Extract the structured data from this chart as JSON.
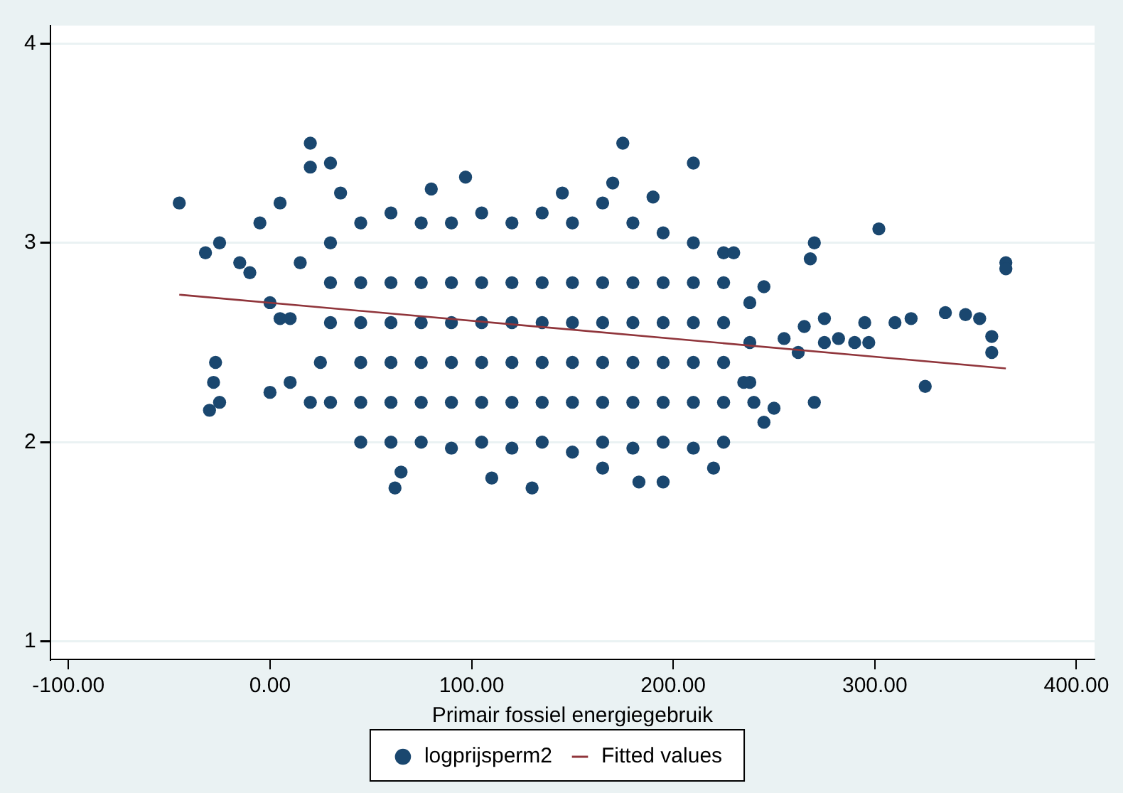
{
  "chart_data": {
    "type": "scatter",
    "xlabel": "Primair fossiel energiegebruik",
    "xlim": [
      -109,
      409
    ],
    "ylim": [
      0.91,
      4.09
    ],
    "xticks": [
      {
        "value": -100,
        "label": "-100.00"
      },
      {
        "value": 0,
        "label": "0.00"
      },
      {
        "value": 100,
        "label": "100.00"
      },
      {
        "value": 200,
        "label": "200.00"
      },
      {
        "value": 300,
        "label": "300.00"
      },
      {
        "value": 400,
        "label": "400.00"
      }
    ],
    "yticks": [
      1,
      2,
      3,
      4
    ],
    "grid": "y",
    "legend": "bottom",
    "marker": "circle",
    "series": [
      {
        "name": "logprijsperm2",
        "color": "#1a476f",
        "x": [
          -45,
          -30,
          -28,
          -27,
          -25,
          -32,
          -25,
          -15,
          -10,
          -5,
          0,
          5,
          10,
          5,
          0,
          10,
          20,
          20,
          30,
          35,
          15,
          25,
          20,
          30,
          30,
          30,
          30,
          45,
          45,
          45,
          45,
          45,
          45,
          60,
          60,
          60,
          60,
          60,
          60,
          75,
          75,
          75,
          75,
          75,
          75,
          90,
          90,
          90,
          90,
          90,
          90,
          105,
          105,
          105,
          105,
          105,
          105,
          120,
          120,
          120,
          120,
          120,
          120,
          135,
          135,
          135,
          135,
          135,
          135,
          150,
          150,
          150,
          150,
          150,
          150,
          165,
          165,
          165,
          165,
          165,
          165,
          180,
          180,
          180,
          180,
          180,
          180,
          195,
          195,
          195,
          195,
          195,
          195,
          210,
          210,
          210,
          210,
          210,
          210,
          225,
          225,
          225,
          225,
          225,
          225,
          238,
          238,
          238,
          62,
          65,
          110,
          130,
          165,
          183,
          195,
          220,
          97,
          175,
          210,
          170,
          190,
          80,
          145,
          245,
          245,
          255,
          262,
          265,
          268,
          270,
          270,
          275,
          275,
          282,
          290,
          295,
          297,
          302,
          310,
          318,
          325,
          335,
          345,
          352,
          358,
          358,
          365,
          365,
          230,
          235,
          240,
          250
        ],
        "values": [
          3.2,
          2.16,
          2.3,
          2.4,
          2.2,
          2.95,
          3.0,
          2.9,
          2.85,
          3.1,
          2.7,
          2.62,
          2.62,
          3.2,
          2.25,
          2.3,
          3.5,
          3.38,
          3.4,
          3.25,
          2.9,
          2.4,
          2.2,
          2.2,
          2.6,
          2.8,
          3.0,
          2.0,
          2.2,
          2.4,
          2.6,
          2.8,
          3.1,
          2.0,
          2.2,
          2.4,
          2.6,
          2.8,
          3.15,
          2.0,
          2.2,
          2.4,
          2.6,
          2.8,
          3.1,
          1.97,
          2.2,
          2.4,
          2.6,
          2.8,
          3.1,
          2.0,
          2.2,
          2.4,
          2.6,
          2.8,
          3.15,
          1.97,
          2.2,
          2.4,
          2.6,
          2.8,
          3.1,
          2.0,
          2.2,
          2.4,
          2.6,
          2.8,
          3.15,
          1.95,
          2.2,
          2.4,
          2.6,
          2.8,
          3.1,
          2.0,
          2.2,
          2.4,
          2.6,
          2.8,
          3.2,
          1.97,
          2.2,
          2.4,
          2.6,
          2.8,
          3.1,
          2.0,
          2.2,
          2.4,
          2.6,
          2.8,
          3.05,
          1.97,
          2.2,
          2.4,
          2.6,
          2.8,
          3.0,
          2.0,
          2.2,
          2.4,
          2.6,
          2.8,
          2.95,
          2.3,
          2.5,
          2.7,
          1.77,
          1.85,
          1.82,
          1.77,
          1.87,
          1.8,
          1.8,
          1.87,
          3.33,
          3.5,
          3.4,
          3.3,
          3.23,
          3.27,
          3.25,
          2.78,
          2.1,
          2.52,
          2.45,
          2.58,
          2.92,
          3.0,
          2.2,
          2.5,
          2.62,
          2.52,
          2.5,
          2.6,
          2.5,
          3.07,
          2.6,
          2.62,
          2.28,
          2.65,
          2.64,
          2.62,
          2.53,
          2.45,
          2.9,
          2.87,
          2.95,
          2.3,
          2.2,
          2.17
        ]
      },
      {
        "name": "Fitted values",
        "type": "line",
        "color": "#90353b",
        "line_style": "solid",
        "marker": "none",
        "x": [
          -45,
          365
        ],
        "values": [
          2.74,
          2.37
        ]
      }
    ]
  }
}
